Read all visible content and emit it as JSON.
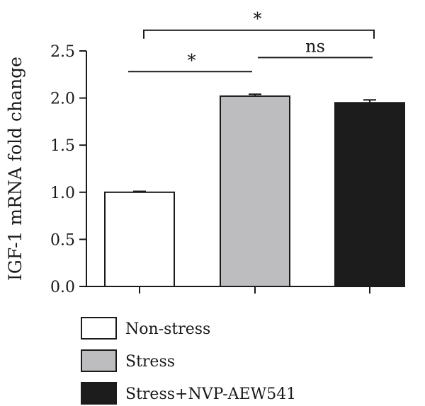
{
  "chart_data": {
    "type": "bar",
    "categories": [
      "Non-stress",
      "Stress",
      "Stress+NVP-AEW541"
    ],
    "values": [
      1.0,
      2.02,
      1.95
    ],
    "errors": [
      0.01,
      0.02,
      0.03
    ],
    "colors": [
      "#ffffff",
      "#bdbdbf",
      "#1c1c1c"
    ],
    "edge_color": "#1a1a1a",
    "ylabel": "IGF-1 mRNA fold change",
    "ylim": [
      0,
      2.5
    ],
    "yticks": [
      "0.0",
      "0.5",
      "1.0",
      "1.5",
      "2.0",
      "2.5"
    ],
    "ytick_values": [
      0,
      0.5,
      1.0,
      1.5,
      2.0,
      2.5
    ],
    "legend": [
      "Non-stress",
      "Stress",
      "Stress+NVP-AEW541"
    ],
    "legend_position": "bottom",
    "grid": false,
    "annotations": [
      {
        "text": "*",
        "from": 0,
        "to": 1,
        "y": 2.28
      },
      {
        "text": "ns",
        "from": 1,
        "to": 2,
        "y": 2.43
      },
      {
        "text": "*",
        "from": 0,
        "to": 2,
        "y": 2.72
      }
    ]
  }
}
